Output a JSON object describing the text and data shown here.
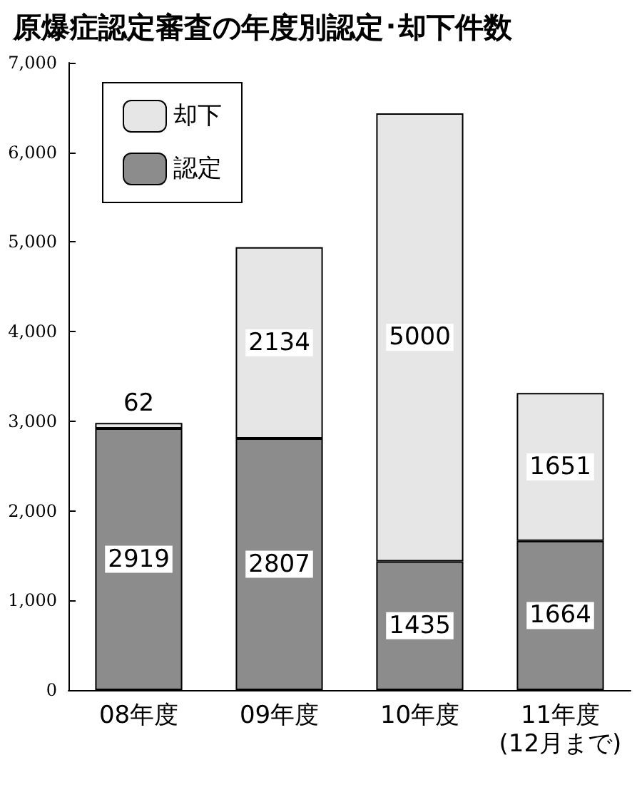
{
  "chart_data": {
    "type": "bar",
    "title": "原爆症認定審査の年度別認定･却下件数",
    "categories": [
      "08年度",
      "09年度",
      "10年度",
      "11年度\n(12月まで)"
    ],
    "series": [
      {
        "name": "認定",
        "color": "#8c8c8c",
        "values": [
          2919,
          2807,
          1435,
          1664
        ]
      },
      {
        "name": "却下",
        "color": "#e6e6e6",
        "values": [
          62,
          2134,
          5000,
          1651
        ]
      }
    ],
    "stacked": true,
    "data_labels": true,
    "ylim": [
      0,
      7000
    ],
    "yticks": [
      {
        "value": 0,
        "label": "0"
      },
      {
        "value": 1000,
        "label": "1,000"
      },
      {
        "value": 2000,
        "label": "2,000"
      },
      {
        "value": 3000,
        "label": "3,000"
      },
      {
        "value": 4000,
        "label": "4,000"
      },
      {
        "value": 5000,
        "label": "5,000"
      },
      {
        "value": 6000,
        "label": "6,000"
      },
      {
        "value": 7000,
        "label": "7,000"
      }
    ],
    "grid": false,
    "legend": "top left"
  }
}
